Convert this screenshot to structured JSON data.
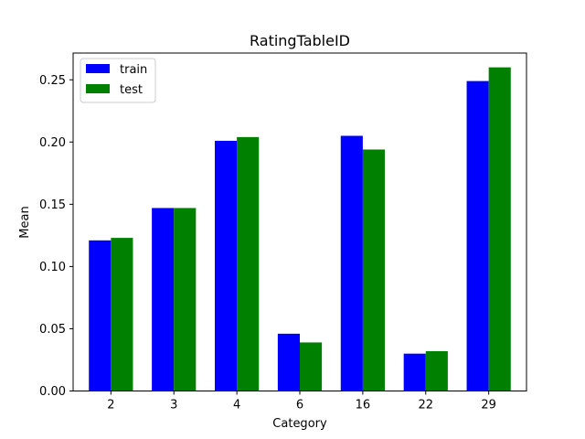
{
  "chart_data": {
    "type": "bar",
    "title": "RatingTableID",
    "xlabel": "Category",
    "ylabel": "Mean",
    "categories": [
      "2",
      "3",
      "4",
      "6",
      "16",
      "22",
      "29"
    ],
    "series": [
      {
        "name": "train",
        "color": "#0000ff",
        "values": [
          0.121,
          0.147,
          0.201,
          0.046,
          0.205,
          0.03,
          0.249
        ]
      },
      {
        "name": "test",
        "color": "#008000",
        "values": [
          0.123,
          0.147,
          0.204,
          0.039,
          0.194,
          0.032,
          0.26
        ]
      }
    ],
    "ylim": [
      0,
      0.2715
    ],
    "yticks": [
      0.0,
      0.05,
      0.1,
      0.15,
      0.2,
      0.25
    ],
    "ytick_labels": [
      "0.00",
      "0.05",
      "0.10",
      "0.15",
      "0.20",
      "0.25"
    ],
    "grid": false,
    "legend_position": "top-left"
  }
}
